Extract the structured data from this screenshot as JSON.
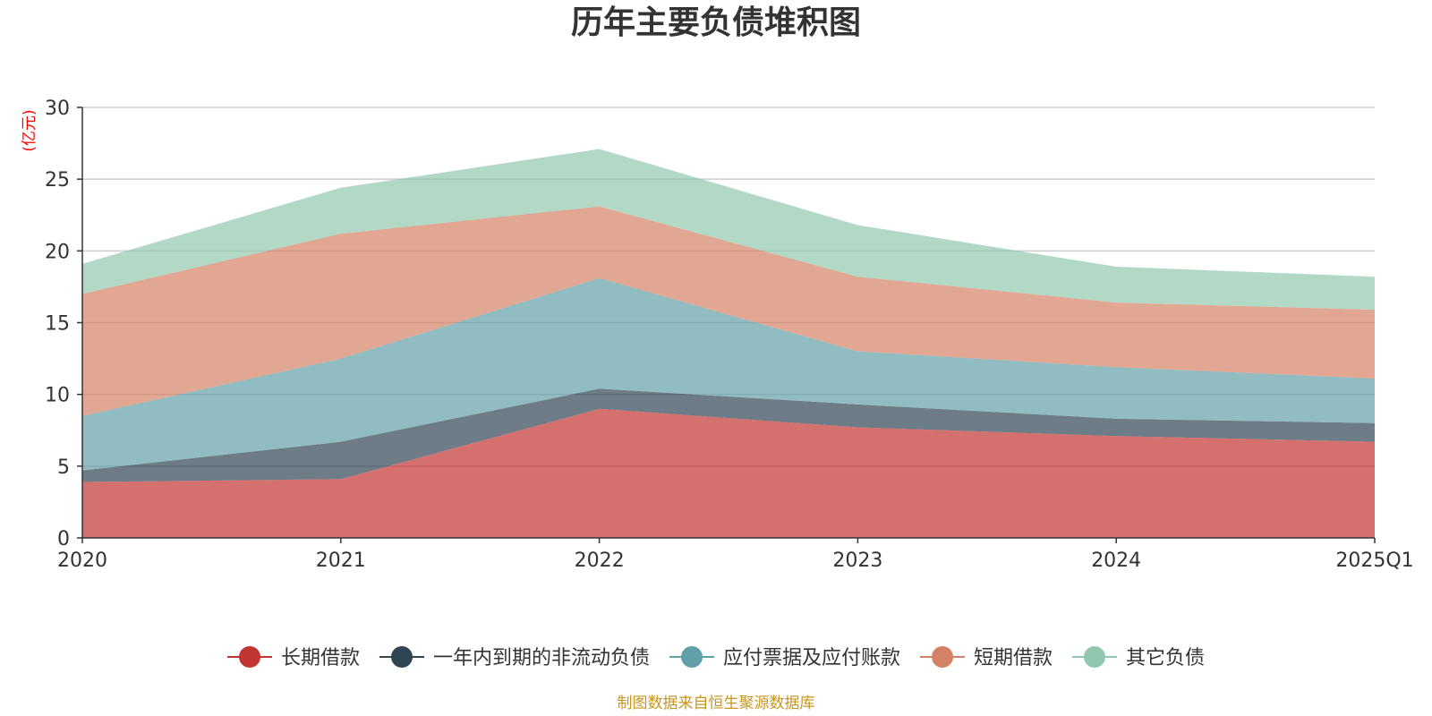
{
  "chart_data": {
    "type": "area",
    "stacked": true,
    "title": "历年主要负债堆积图",
    "ylabel": "(亿元)",
    "categories": [
      "2020",
      "2021",
      "2022",
      "2023",
      "2024",
      "2025Q1"
    ],
    "ylim": [
      0,
      30
    ],
    "yticks": [
      0,
      5,
      10,
      15,
      20,
      25,
      30
    ],
    "grid": true,
    "legend_position": "bottom",
    "series": [
      {
        "name": "长期借款",
        "color": "#c23531",
        "values": [
          3.9,
          4.1,
          9.0,
          7.7,
          7.1,
          6.7
        ]
      },
      {
        "name": "一年内到期的非流动负债",
        "color": "#2f4554",
        "values": [
          0.8,
          2.6,
          1.4,
          1.6,
          1.2,
          1.3
        ]
      },
      {
        "name": "应付票据及应付账款",
        "color": "#61a0a8",
        "values": [
          3.8,
          5.8,
          7.7,
          3.7,
          3.6,
          3.1
        ]
      },
      {
        "name": "短期借款",
        "color": "#d48265",
        "values": [
          8.5,
          8.7,
          5.0,
          5.2,
          4.5,
          4.8
        ]
      },
      {
        "name": "其它负债",
        "color": "#91c7ae",
        "values": [
          2.1,
          3.2,
          4.0,
          3.6,
          2.5,
          2.3
        ]
      }
    ]
  },
  "source_text": "制图数据来自恒生聚源数据库",
  "colors": {
    "unit": "#ff0000",
    "source": "#c8961e",
    "grid": "#cccccc",
    "axis": "#333333"
  }
}
